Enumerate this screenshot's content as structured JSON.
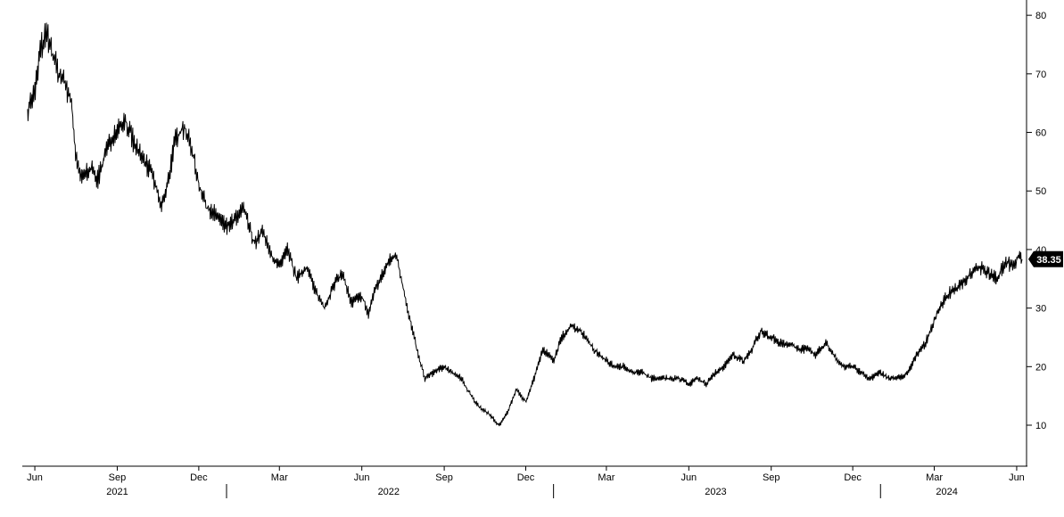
{
  "chart_data": {
    "type": "line",
    "title": "",
    "xlabel": "",
    "ylabel": "",
    "y_axis_side": "right",
    "ylim": [
      3,
      82
    ],
    "y_ticks": [
      10,
      20,
      30,
      40,
      50,
      60,
      70,
      80
    ],
    "y_tick_labels": [
      "10",
      "20",
      "30",
      "40",
      "50",
      "60",
      "70",
      "80"
    ],
    "x_range": [
      "2021-05-20",
      "2024-06-12"
    ],
    "x_month_ticks": [
      {
        "date": "2021-06-01",
        "label": "Jun"
      },
      {
        "date": "2021-09-01",
        "label": "Sep"
      },
      {
        "date": "2021-12-01",
        "label": "Dec"
      },
      {
        "date": "2022-03-01",
        "label": "Mar"
      },
      {
        "date": "2022-06-01",
        "label": "Jun"
      },
      {
        "date": "2022-09-01",
        "label": "Sep"
      },
      {
        "date": "2022-12-01",
        "label": "Dec"
      },
      {
        "date": "2023-03-01",
        "label": "Mar"
      },
      {
        "date": "2023-06-01",
        "label": "Jun"
      },
      {
        "date": "2023-09-01",
        "label": "Sep"
      },
      {
        "date": "2023-12-01",
        "label": "Dec"
      },
      {
        "date": "2024-03-01",
        "label": "Mar"
      },
      {
        "date": "2024-06-01",
        "label": "Jun"
      }
    ],
    "x_year_labels": [
      {
        "date": "2021-09-01",
        "label": "2021"
      },
      {
        "date": "2022-07-01",
        "label": "2022"
      },
      {
        "date": "2023-07-01",
        "label": "2023"
      },
      {
        "date": "2024-03-15",
        "label": "2024"
      }
    ],
    "year_separators": [
      "2022-01-01",
      "2023-01-01",
      "2024-01-01"
    ],
    "grid": false,
    "last_value_label": "38.35",
    "series": [
      {
        "color": "#000000",
        "x": [
          "2021-05-24",
          "2021-06-01",
          "2021-06-07",
          "2021-06-14",
          "2021-06-21",
          "2021-06-28",
          "2021-07-05",
          "2021-07-12",
          "2021-07-16",
          "2021-07-23",
          "2021-08-01",
          "2021-08-10",
          "2021-08-20",
          "2021-09-01",
          "2021-09-10",
          "2021-09-20",
          "2021-10-01",
          "2021-10-10",
          "2021-10-20",
          "2021-10-28",
          "2021-11-05",
          "2021-11-15",
          "2021-11-25",
          "2021-12-01",
          "2021-12-10",
          "2021-12-20",
          "2022-01-01",
          "2022-01-10",
          "2022-01-20",
          "2022-02-01",
          "2022-02-10",
          "2022-02-20",
          "2022-03-01",
          "2022-03-10",
          "2022-03-20",
          "2022-04-01",
          "2022-04-10",
          "2022-04-20",
          "2022-05-01",
          "2022-05-10",
          "2022-05-20",
          "2022-06-01",
          "2022-06-08",
          "2022-06-15",
          "2022-06-22",
          "2022-07-01",
          "2022-07-10",
          "2022-07-20",
          "2022-08-01",
          "2022-08-10",
          "2022-08-20",
          "2022-09-01",
          "2022-09-10",
          "2022-09-20",
          "2022-10-01",
          "2022-10-10",
          "2022-10-20",
          "2022-11-01",
          "2022-11-10",
          "2022-11-20",
          "2022-12-01",
          "2022-12-10",
          "2022-12-20",
          "2023-01-01",
          "2023-01-10",
          "2023-01-20",
          "2023-02-01",
          "2023-02-10",
          "2023-02-20",
          "2023-03-01",
          "2023-03-10",
          "2023-03-20",
          "2023-04-01",
          "2023-04-10",
          "2023-04-20",
          "2023-05-01",
          "2023-05-10",
          "2023-05-20",
          "2023-06-01",
          "2023-06-10",
          "2023-06-20",
          "2023-07-01",
          "2023-07-10",
          "2023-07-20",
          "2023-08-01",
          "2023-08-10",
          "2023-08-20",
          "2023-09-01",
          "2023-09-10",
          "2023-09-20",
          "2023-10-01",
          "2023-10-10",
          "2023-10-20",
          "2023-11-01",
          "2023-11-10",
          "2023-11-20",
          "2023-12-01",
          "2023-12-10",
          "2023-12-20",
          "2024-01-01",
          "2024-01-10",
          "2024-01-20",
          "2024-02-01",
          "2024-02-10",
          "2024-02-20",
          "2024-03-01",
          "2024-03-10",
          "2024-03-20",
          "2024-04-01",
          "2024-04-10",
          "2024-04-20",
          "2024-05-01",
          "2024-05-10",
          "2024-05-20",
          "2024-05-27",
          "2024-06-03",
          "2024-06-07"
        ],
        "y": [
          64,
          67,
          74,
          77,
          73,
          70,
          68,
          65,
          56,
          52,
          54,
          52,
          57,
          61,
          62,
          58,
          55,
          53,
          47,
          52,
          59,
          61,
          56,
          51,
          47,
          46,
          44,
          45,
          47,
          41,
          43,
          39,
          37,
          40,
          35,
          37,
          33,
          30,
          34,
          36,
          31,
          32,
          29,
          33,
          35,
          38,
          39,
          31,
          23,
          18,
          19,
          20,
          19,
          18,
          15,
          13,
          12,
          10,
          12,
          16,
          14,
          18,
          23,
          21,
          25,
          27,
          26,
          24,
          22,
          21,
          20,
          20,
          19,
          19,
          18,
          18,
          18,
          18,
          17,
          18,
          17,
          19,
          20,
          22,
          21,
          23,
          26,
          25,
          24,
          24,
          23,
          23,
          22,
          24,
          22,
          20,
          20,
          19,
          18,
          19,
          18,
          18,
          19,
          22,
          24,
          28,
          31,
          33,
          34,
          36,
          37,
          36,
          35,
          38,
          37,
          39,
          38.35
        ]
      }
    ]
  }
}
